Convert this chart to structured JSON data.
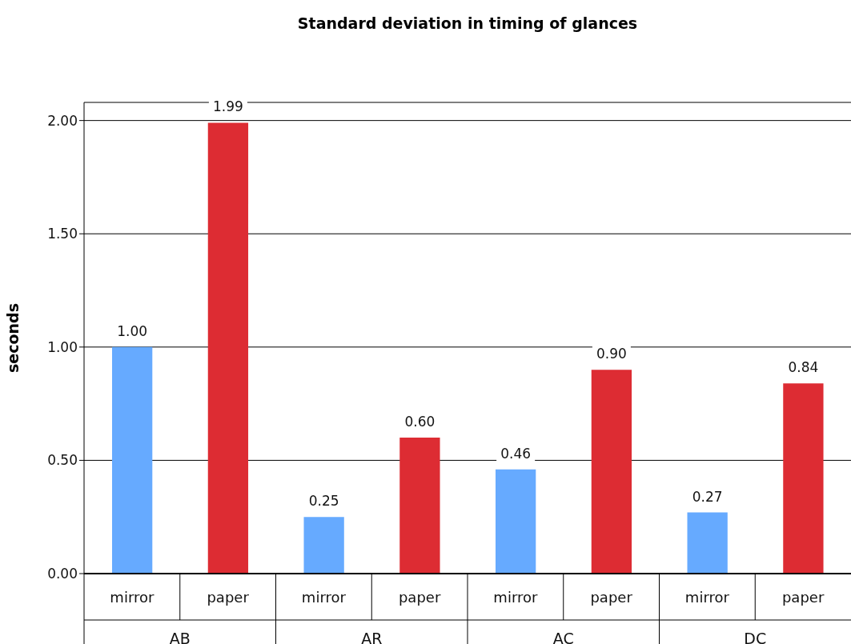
{
  "chart_data": {
    "type": "bar",
    "title": "Standard deviation in timing of glances",
    "ylabel": "seconds",
    "categories": [
      "AB",
      "AR",
      "AC",
      "DC"
    ],
    "series": [
      {
        "name": "mirror",
        "color": "#66aaff",
        "values": [
          1.0,
          0.25,
          0.46,
          0.27
        ],
        "value_labels": [
          "1.00",
          "0.25",
          "0.46",
          "0.27"
        ]
      },
      {
        "name": "paper",
        "color": "#dd2c33",
        "values": [
          1.99,
          0.6,
          0.9,
          0.84
        ],
        "value_labels": [
          "1.99",
          "0.60",
          "0.90",
          "0.84"
        ]
      }
    ],
    "ylim": [
      0,
      2.08
    ],
    "yticks": [
      {
        "value": 0,
        "label": "0.00"
      },
      {
        "value": 0.5,
        "label": "0.50"
      },
      {
        "value": 1,
        "label": "1.00"
      },
      {
        "value": 1.5,
        "label": "1.50"
      },
      {
        "value": 2,
        "label": "2.00"
      }
    ],
    "grid": "y",
    "legend": false
  }
}
